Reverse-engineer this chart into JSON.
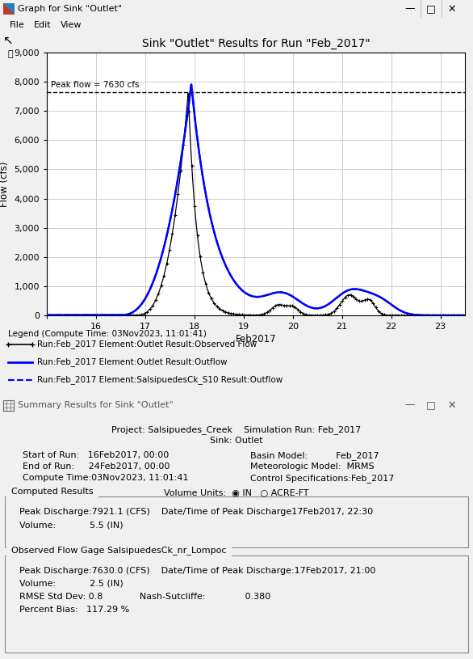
{
  "title": "Sink \"Outlet\" Results for Run \"Feb_2017\"",
  "window_title": "Graph for Sink \"Outlet\"",
  "summary_title": "Summary Results for Sink \"Outlet\"",
  "ylabel": "Flow (cfs)",
  "xlabel": "Feb2017",
  "ylim": [
    0,
    9000
  ],
  "yticks": [
    0,
    1000,
    2000,
    3000,
    4000,
    5000,
    6000,
    7000,
    8000,
    9000
  ],
  "xlim_days": [
    15.0,
    23.5
  ],
  "xticks_days": [
    15,
    16,
    17,
    18,
    19,
    20,
    21,
    22,
    23
  ],
  "xtick_labels": [
    "",
    "16",
    "17",
    "18",
    "19",
    "20",
    "21",
    "22",
    "23"
  ],
  "peak_flow_label": "Peak flow = 7630 cfs",
  "peak_flow_value": 7630,
  "legend_title": "Legend (Compute Time: 03Nov2023, 11:01:41)",
  "legend_entries": [
    "Run:Feb_2017 Element:Outlet Result:Observed Flow",
    "Run:Feb_2017 Element:Outlet Result:Outflow",
    "Run:Feb_2017 Element:SalsipuedesCk_S10 Result:Outflow"
  ],
  "plot_bg_color": "#ffffff",
  "grid_color": "#c8c8c8",
  "window_bg": "#f0f0f0",
  "titlebar_bg": "#f0f0f0",
  "summary_bg": "#f0f0f0",
  "summary_project": "Salsipuedes_Creek",
  "summary_run": "Feb_2017",
  "summary_sink": "Outlet",
  "summary_start": "16Feb2017, 00:00",
  "summary_end": "24Feb2017, 00:00",
  "summary_compute": "03Nov2023, 11:01:41",
  "summary_basin": "Feb_2017",
  "summary_meteo": "MRMS",
  "summary_control": "Feb_2017",
  "computed_peak": "7921.1 (CFS)",
  "computed_peak_time": "17Feb2017, 22:30",
  "computed_volume": "5.5 (IN)",
  "obs_peak": "7630.0 (CFS)",
  "obs_peak_time": "17Feb2017, 21:00",
  "obs_volume": "2.5 (IN)",
  "rmse": "0.8",
  "nash": "0.380",
  "percent_bias": "117.29 %"
}
